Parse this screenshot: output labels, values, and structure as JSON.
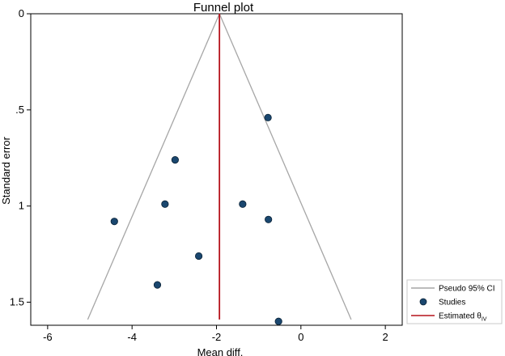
{
  "chart_data": {
    "type": "scatter",
    "title": "Funnel plot",
    "xlabel": "Mean diff.",
    "ylabel": "Standard error",
    "xlim": [
      -6.4,
      2.4
    ],
    "ylim": [
      0,
      1.62
    ],
    "y_reversed": true,
    "xticks": [
      -6,
      -4,
      -2,
      0,
      2
    ],
    "xtick_labels": [
      "-6",
      "-4",
      "-2",
      "0",
      "2"
    ],
    "yticks": [
      0,
      0.5,
      1,
      1.5
    ],
    "ytick_labels": [
      "0",
      ".5",
      "1",
      "1.5"
    ],
    "pooled_estimate": -1.93,
    "funnel_apex": [
      -1.93,
      0
    ],
    "funnel_base_se": 1.59,
    "funnel_left_x": -5.05,
    "funnel_right_x": 1.19,
    "studies": [
      {
        "x": -0.78,
        "y": 0.54
      },
      {
        "x": -2.98,
        "y": 0.76
      },
      {
        "x": -3.22,
        "y": 0.99
      },
      {
        "x": -1.38,
        "y": 0.99
      },
      {
        "x": -4.42,
        "y": 1.08
      },
      {
        "x": -0.77,
        "y": 1.07
      },
      {
        "x": -2.42,
        "y": 1.26
      },
      {
        "x": -3.4,
        "y": 1.41
      },
      {
        "x": -0.53,
        "y": 1.6
      }
    ],
    "legend": {
      "position": "bottom-right",
      "items": [
        {
          "label": "Pseudo 95% CI",
          "kind": "line",
          "color": "#a6a6a6"
        },
        {
          "label": "Studies",
          "kind": "marker",
          "color": "#1a476f"
        },
        {
          "label": "Estimated θ",
          "subscript": "IV",
          "kind": "line",
          "color": "#b5121b"
        }
      ]
    },
    "colors": {
      "funnel": "#a6a6a6",
      "estimate": "#b5121b",
      "marker": "#1a476f",
      "marker_edge": "#0b2236",
      "frame": "#000000"
    }
  }
}
